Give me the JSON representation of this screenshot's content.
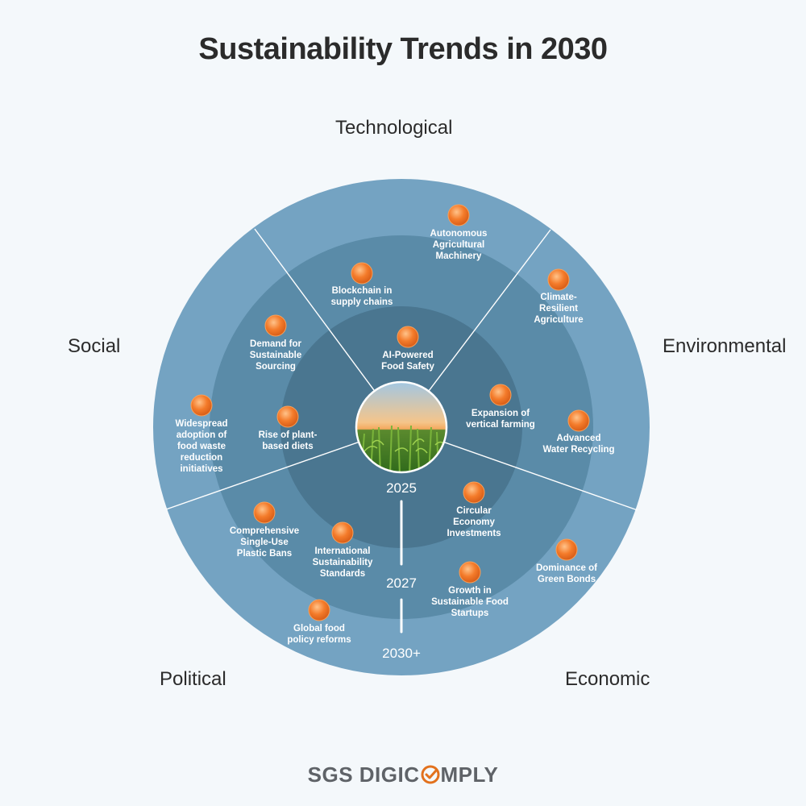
{
  "title": "Sustainability Trends in 2030",
  "categories": {
    "technological": "Technological",
    "social": "Social",
    "environmental": "Environmental",
    "political": "Political",
    "economic": "Economic"
  },
  "rings": [
    "2025",
    "2027",
    "2030+"
  ],
  "trends": [
    {
      "name": "autonomous-agricultural-machinery",
      "lines": [
        "Autonomous",
        "Agricultural",
        "Machinery"
      ],
      "category": "Technological",
      "ring": "2030+"
    },
    {
      "name": "blockchain-supply-chains",
      "lines": [
        "Blockchain in",
        "supply chains"
      ],
      "category": "Technological",
      "ring": "2027"
    },
    {
      "name": "ai-powered-food-safety",
      "lines": [
        "AI-Powered",
        "Food Safety"
      ],
      "category": "Technological",
      "ring": "2025"
    },
    {
      "name": "climate-resilient-agriculture",
      "lines": [
        "Climate-",
        "Resilient",
        "Agriculture"
      ],
      "category": "Environmental",
      "ring": "2030+"
    },
    {
      "name": "expansion-vertical-farming",
      "lines": [
        "Expansion of",
        "vertical farming"
      ],
      "category": "Environmental",
      "ring": "2025"
    },
    {
      "name": "advanced-water-recycling",
      "lines": [
        "Advanced",
        "Water Recycling"
      ],
      "category": "Environmental",
      "ring": "2030+"
    },
    {
      "name": "demand-sustainable-sourcing",
      "lines": [
        "Demand for",
        "Sustainable",
        "Sourcing"
      ],
      "category": "Social",
      "ring": "2027"
    },
    {
      "name": "food-waste-reduction",
      "lines": [
        "Widespread",
        "adoption of",
        "food waste",
        "reduction",
        "initiatives"
      ],
      "category": "Social",
      "ring": "2030+"
    },
    {
      "name": "plant-based-diets",
      "lines": [
        "Rise of plant-",
        "based diets"
      ],
      "category": "Social",
      "ring": "2025"
    },
    {
      "name": "circular-economy-investments",
      "lines": [
        "Circular",
        "Economy",
        "Investments"
      ],
      "category": "Economic",
      "ring": "2025"
    },
    {
      "name": "dominance-green-bonds",
      "lines": [
        "Dominance of",
        "Green Bonds"
      ],
      "category": "Economic",
      "ring": "2030+"
    },
    {
      "name": "sustainable-food-startups",
      "lines": [
        "Growth in",
        "Sustainable Food",
        "Startups"
      ],
      "category": "Economic",
      "ring": "2027"
    },
    {
      "name": "single-use-plastic-bans",
      "lines": [
        "Comprehensive",
        "Single-Use",
        "Plastic Bans"
      ],
      "category": "Political",
      "ring": "2027"
    },
    {
      "name": "international-sustainability-standards",
      "lines": [
        "International",
        "Sustainability",
        "Standards"
      ],
      "category": "Political",
      "ring": "2025"
    },
    {
      "name": "global-food-policy-reforms",
      "lines": [
        "Global food",
        "policy reforms"
      ],
      "category": "Political",
      "ring": "2030+"
    }
  ],
  "logo": {
    "part1": "SGS DIGIC",
    "part2": "MPLY"
  },
  "colors": {
    "ring_outer": "#74a3c2",
    "ring_middle": "#5a8ba8",
    "ring_inner": "#4a7690",
    "dot": "#f07a2c",
    "logo_check": "#e2711d"
  }
}
